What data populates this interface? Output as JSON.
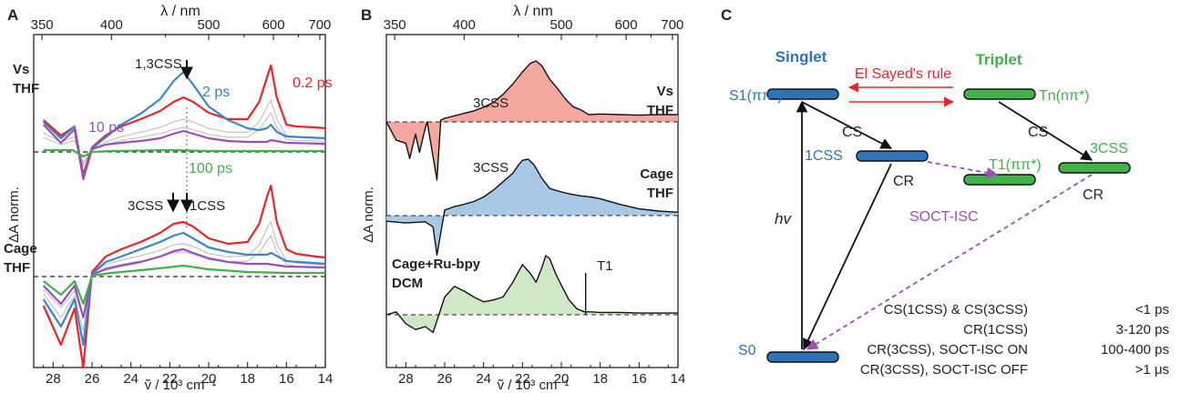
{
  "colors": {
    "red": "#e8252a",
    "blue": "#3b86c6",
    "purple": "#9b4fb5",
    "green": "#3fb24a",
    "grey": "#c2c2c2",
    "fill_red": "#f4a8a0",
    "fill_blue": "#a8c8e6",
    "fill_green": "#cfe8c6",
    "state_blue": "#2f74b8",
    "state_green": "#3fb24a"
  },
  "panelA": {
    "letter": "A",
    "top_axis_label": "λ / nm",
    "bottom_axis_label": "ṽ / 10³ cm⁻¹",
    "y_axis_label": "ΔA norm.",
    "top_ticks": [
      "350",
      "400",
      "500",
      "600",
      "700"
    ],
    "bottom_ticks": [
      "28",
      "26",
      "24",
      "22",
      "20",
      "18",
      "16",
      "14"
    ],
    "vs_label_1": "Vs",
    "vs_label_2": "THF",
    "cage_label_1": "Cage",
    "cage_label_2": "THF",
    "ann_css13": "1,3CSS",
    "ann_2ps": "2 ps",
    "ann_02ps": "0.2 ps",
    "ann_10ps": "10 ps",
    "ann_100ps": "100 ps",
    "ann_3css": "3CSS",
    "ann_1css": "1CSS"
  },
  "panelB": {
    "letter": "B",
    "top_axis_label": "λ / nm",
    "bottom_axis_label": "ṽ / 10³ cm⁻¹",
    "y_axis_label": "ΔA norm.",
    "top_ticks": [
      "350",
      "400",
      "500",
      "600",
      "700"
    ],
    "bottom_ticks": [
      "28",
      "26",
      "24",
      "22",
      "20",
      "18",
      "16",
      "14"
    ],
    "trace1_peak": "3CSS",
    "trace1_label_1": "Vs",
    "trace1_label_2": "THF",
    "trace2_peak": "3CSS",
    "trace2_label_1": "Cage",
    "trace2_label_2": "THF",
    "trace3_label_1": "Cage+Ru-bpy",
    "trace3_label_2": "DCM",
    "trace3_peak": "T1"
  },
  "panelC": {
    "letter": "C",
    "singlet": "Singlet",
    "triplet": "Triplet",
    "el_sayed": "El Sayed's rule",
    "s1": "S1(ππ*)",
    "tn": "Tn(nπ*)",
    "cs_left": "CS",
    "cs_right": "CS",
    "css1": "1CSS",
    "css3": "3CSS",
    "t1": "T1(ππ*)",
    "cr_left": "CR",
    "cr_right": "CR",
    "soct": "SOCT-ISC",
    "hv": "hv",
    "s0": "S0",
    "table": [
      [
        "CS(1CSS) & CS(3CSS)",
        "<1 ps"
      ],
      [
        "CR(1CSS)",
        "3-120 ps"
      ],
      [
        "CR(3CSS), SOCT-ISC ON",
        "100-400 ps"
      ],
      [
        "CR(3CSS), SOCT-ISC OFF",
        ">1 μs"
      ]
    ]
  },
  "chart_data": [
    {
      "panel": "A",
      "type": "line",
      "xlabel": "ṽ / 10³ cm⁻¹",
      "x2label": "λ / nm",
      "ylabel": "ΔA norm.",
      "xlim": [
        29,
        14
      ],
      "x2_ticks": [
        350,
        400,
        500,
        600,
        700
      ],
      "series": [
        {
          "name": "0.2 ps",
          "group": "Vs THF",
          "color": "red",
          "x": [
            28.5,
            27.6,
            26.9,
            26.45,
            26.0,
            25.3,
            24.5,
            23.5,
            22.5,
            21.8,
            21.3,
            20.8,
            20.0,
            19.0,
            18.0,
            17.4,
            17.0,
            16.8,
            16.5,
            16.0,
            15.5,
            14.5,
            14.0
          ],
          "y": [
            0.35,
            0.18,
            0.28,
            -0.25,
            0.05,
            0.18,
            0.28,
            0.36,
            0.45,
            0.55,
            0.6,
            0.55,
            0.43,
            0.36,
            0.36,
            0.55,
            0.82,
            0.95,
            0.6,
            0.3,
            0.28,
            0.27,
            0.26
          ]
        },
        {
          "name": "2 ps",
          "group": "Vs THF",
          "color": "blue",
          "x": [
            28.5,
            27.6,
            26.9,
            26.45,
            26.0,
            25.3,
            24.5,
            23.5,
            22.5,
            21.8,
            21.3,
            20.8,
            20.0,
            19.0,
            18.0,
            17.4,
            17.0,
            16.8,
            16.5,
            16.0,
            14.0
          ],
          "y": [
            0.33,
            0.15,
            0.28,
            -0.28,
            0.04,
            0.16,
            0.3,
            0.42,
            0.58,
            0.78,
            0.88,
            0.74,
            0.5,
            0.35,
            0.26,
            0.24,
            0.26,
            0.3,
            0.22,
            0.17,
            0.15
          ]
        },
        {
          "name": "10 ps",
          "group": "Vs THF",
          "color": "purple",
          "x": [
            28.5,
            27.6,
            26.9,
            26.45,
            26.0,
            25.3,
            24.5,
            23.5,
            22.5,
            21.8,
            21.3,
            20.8,
            20.0,
            19.0,
            18.0,
            17.0,
            16.8,
            16.0,
            14.0
          ],
          "y": [
            0.3,
            0.1,
            0.25,
            -0.3,
            0.03,
            0.08,
            0.1,
            0.12,
            0.15,
            0.2,
            0.23,
            0.2,
            0.15,
            0.12,
            0.11,
            0.11,
            0.13,
            0.1,
            0.09
          ]
        },
        {
          "name": "100 ps",
          "group": "Vs THF",
          "color": "green",
          "x": [
            28.5,
            27.0,
            26.45,
            26.0,
            25.0,
            22.0,
            20.0,
            18.0,
            16.0,
            14.0
          ],
          "y": [
            0.02,
            0.02,
            -0.05,
            0.0,
            0.01,
            0.02,
            0.01,
            0.01,
            0.01,
            0.01
          ]
        },
        {
          "name": "",
          "group": "Cage THF",
          "color": "red",
          "x": [
            28.5,
            27.6,
            26.9,
            26.45,
            26.0,
            25.3,
            24.5,
            23.5,
            22.5,
            21.8,
            21.3,
            20.8,
            20.0,
            19.0,
            18.0,
            17.4,
            17.0,
            16.8,
            16.5,
            16.0,
            15.5,
            14.5,
            14.0
          ],
          "y": [
            -0.32,
            -0.75,
            -0.35,
            -1.0,
            0.05,
            0.22,
            0.3,
            0.38,
            0.48,
            0.58,
            0.6,
            0.55,
            0.42,
            0.36,
            0.38,
            0.58,
            0.88,
            1.0,
            0.6,
            0.3,
            0.25,
            0.22,
            0.21
          ]
        },
        {
          "name": "",
          "group": "Cage THF",
          "color": "blue",
          "x": [
            28.5,
            27.6,
            26.9,
            26.45,
            26.0,
            25.3,
            24.5,
            23.5,
            22.5,
            21.8,
            21.3,
            20.8,
            20.0,
            19.0,
            18.0,
            17.0,
            16.8,
            16.0,
            14.0
          ],
          "y": [
            -0.25,
            -0.55,
            -0.25,
            -0.75,
            0.03,
            0.16,
            0.22,
            0.3,
            0.38,
            0.45,
            0.48,
            0.42,
            0.32,
            0.27,
            0.24,
            0.24,
            0.26,
            0.17,
            0.14
          ]
        },
        {
          "name": "",
          "group": "Cage THF",
          "color": "purple",
          "x": [
            28.5,
            27.6,
            26.9,
            26.45,
            26.0,
            25.3,
            24.5,
            23.5,
            22.5,
            21.8,
            21.3,
            20.8,
            20.0,
            19.0,
            18.0,
            17.0,
            16.0,
            14.0
          ],
          "y": [
            -0.1,
            -0.3,
            -0.1,
            -0.45,
            0.02,
            0.08,
            0.12,
            0.16,
            0.22,
            0.28,
            0.3,
            0.26,
            0.2,
            0.16,
            0.14,
            0.14,
            0.11,
            0.1
          ]
        },
        {
          "name": "",
          "group": "Cage THF",
          "color": "green",
          "x": [
            28.5,
            27.6,
            26.9,
            26.45,
            26.0,
            25.0,
            23.0,
            21.3,
            20.0,
            18.0,
            16.0,
            14.0
          ],
          "y": [
            -0.05,
            -0.2,
            -0.05,
            -0.3,
            0.01,
            0.04,
            0.08,
            0.12,
            0.08,
            0.05,
            0.04,
            0.04
          ]
        }
      ]
    },
    {
      "panel": "B",
      "type": "area",
      "xlabel": "ṽ / 10³ cm⁻¹",
      "x2label": "λ / nm",
      "ylabel": "ΔA norm.",
      "xlim": [
        29,
        14
      ],
      "x2_ticks": [
        350,
        400,
        500,
        600,
        700
      ],
      "series": [
        {
          "name": "Vs THF",
          "color": "fill_red",
          "x": [
            29.0,
            28.5,
            28.0,
            27.8,
            27.5,
            27.3,
            27.0,
            26.9,
            26.4,
            26.2,
            26.0,
            25.5,
            25.0,
            24.5,
            24.0,
            23.5,
            23.0,
            22.5,
            22.0,
            21.6,
            21.3,
            21.0,
            20.6,
            20.2,
            19.8,
            19.4,
            19.0,
            18.6,
            18.0,
            17.0,
            16.0,
            15.0,
            14.0
          ],
          "y": [
            0.0,
            -0.3,
            -0.35,
            -0.6,
            -0.2,
            -0.5,
            -0.1,
            0.0,
            -0.95,
            0.03,
            0.06,
            0.1,
            0.14,
            0.18,
            0.24,
            0.32,
            0.45,
            0.62,
            0.82,
            0.96,
            1.0,
            0.92,
            0.7,
            0.55,
            0.38,
            0.25,
            0.2,
            0.12,
            0.13,
            0.12,
            0.11,
            0.12,
            0.12
          ]
        },
        {
          "name": "Cage THF",
          "color": "fill_blue",
          "x": [
            29.0,
            28.0,
            27.0,
            26.6,
            26.4,
            26.0,
            25.5,
            25.0,
            24.5,
            24.0,
            23.5,
            23.0,
            22.5,
            22.2,
            22.0,
            21.7,
            21.4,
            21.0,
            20.6,
            20.0,
            19.5,
            19.0,
            18.5,
            18.0,
            17.0,
            16.0,
            15.0,
            14.0
          ],
          "y": [
            -0.1,
            -0.13,
            -0.11,
            -0.2,
            -0.7,
            0.1,
            0.16,
            0.2,
            0.25,
            0.33,
            0.45,
            0.6,
            0.75,
            0.9,
            0.98,
            1.0,
            0.9,
            0.66,
            0.48,
            0.42,
            0.38,
            0.35,
            0.33,
            0.3,
            0.2,
            0.12,
            0.08,
            0.06
          ]
        },
        {
          "name": "Cage+Ru-bpy DCM",
          "color": "fill_green",
          "x": [
            29.0,
            28.5,
            28.0,
            27.5,
            27.0,
            26.6,
            26.4,
            26.0,
            25.5,
            25.0,
            24.5,
            24.0,
            23.5,
            23.0,
            22.5,
            22.0,
            21.6,
            21.3,
            21.0,
            20.8,
            20.6,
            20.3,
            20.0,
            19.6,
            19.2,
            18.8,
            18.5,
            18.0,
            17.0,
            16.0,
            15.0,
            14.0
          ],
          "y": [
            0.0,
            0.05,
            -0.15,
            -0.25,
            -0.2,
            -0.3,
            -0.1,
            0.3,
            0.48,
            0.4,
            0.3,
            0.22,
            0.25,
            0.3,
            0.55,
            0.85,
            0.7,
            0.55,
            0.8,
            1.0,
            0.95,
            0.7,
            0.5,
            0.25,
            0.1,
            0.05,
            0.05,
            0.04,
            0.04,
            0.03,
            0.03,
            0.03
          ]
        }
      ]
    }
  ]
}
